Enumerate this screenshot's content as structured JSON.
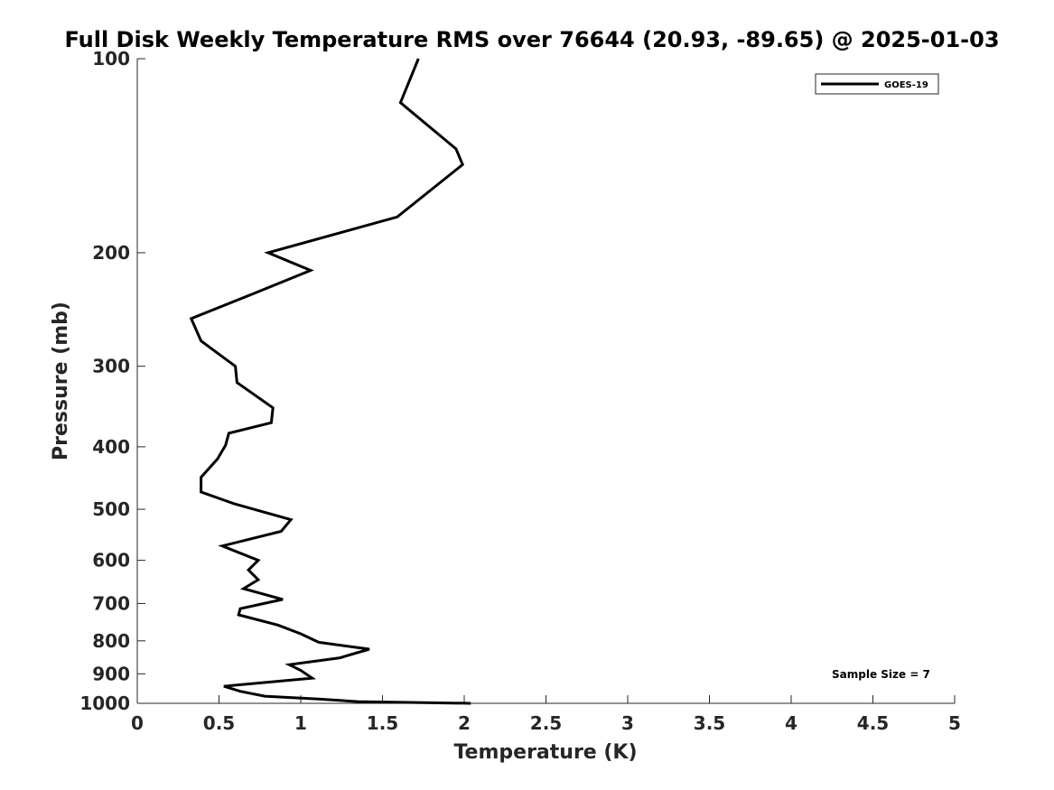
{
  "chart_data": {
    "type": "line",
    "title": "Full Disk Weekly Temperature RMS over 76644 (20.93, -89.65) @ 2025-01-03",
    "xlabel": "Temperature (K)",
    "ylabel": "Pressure (mb)",
    "xlim": [
      0,
      5
    ],
    "ylim": [
      100,
      1000
    ],
    "yscale": "log",
    "y_reversed": true,
    "x_ticks": [
      "0",
      "0.5",
      "1",
      "1.5",
      "2",
      "2.5",
      "3",
      "3.5",
      "4",
      "4.5",
      "5"
    ],
    "y_ticks": [
      "100",
      "200",
      "300",
      "400",
      "500",
      "600",
      "700",
      "800",
      "900",
      "1000"
    ],
    "grid": false,
    "legend_position": "top-right",
    "series": [
      {
        "name": "GOES-19",
        "color": "#000000",
        "x": [
          1.72,
          1.61,
          1.95,
          1.99,
          1.59,
          0.8,
          1.06,
          0.7,
          0.33,
          0.39,
          0.6,
          0.61,
          0.83,
          0.82,
          0.56,
          0.54,
          0.49,
          0.39,
          0.39,
          0.59,
          0.94,
          0.88,
          0.52,
          0.74,
          0.68,
          0.74,
          0.65,
          0.89,
          0.63,
          0.62,
          0.86,
          1.0,
          1.11,
          1.42,
          1.24,
          0.93,
          1.0,
          1.07,
          0.53,
          0.63,
          0.78,
          1.11,
          1.35,
          2.04
        ],
        "y": [
          100,
          117,
          138,
          146,
          176,
          200,
          213,
          232,
          253,
          274,
          300,
          318,
          348,
          367,
          381,
          398,
          418,
          446,
          470,
          490,
          519,
          541,
          570,
          600,
          621,
          643,
          664,
          690,
          713,
          729,
          756,
          780,
          804,
          824,
          850,
          871,
          889,
          914,
          941,
          958,
          975,
          985,
          994,
          1000
        ]
      }
    ],
    "annotations": [
      "Sample Size = 7"
    ]
  }
}
